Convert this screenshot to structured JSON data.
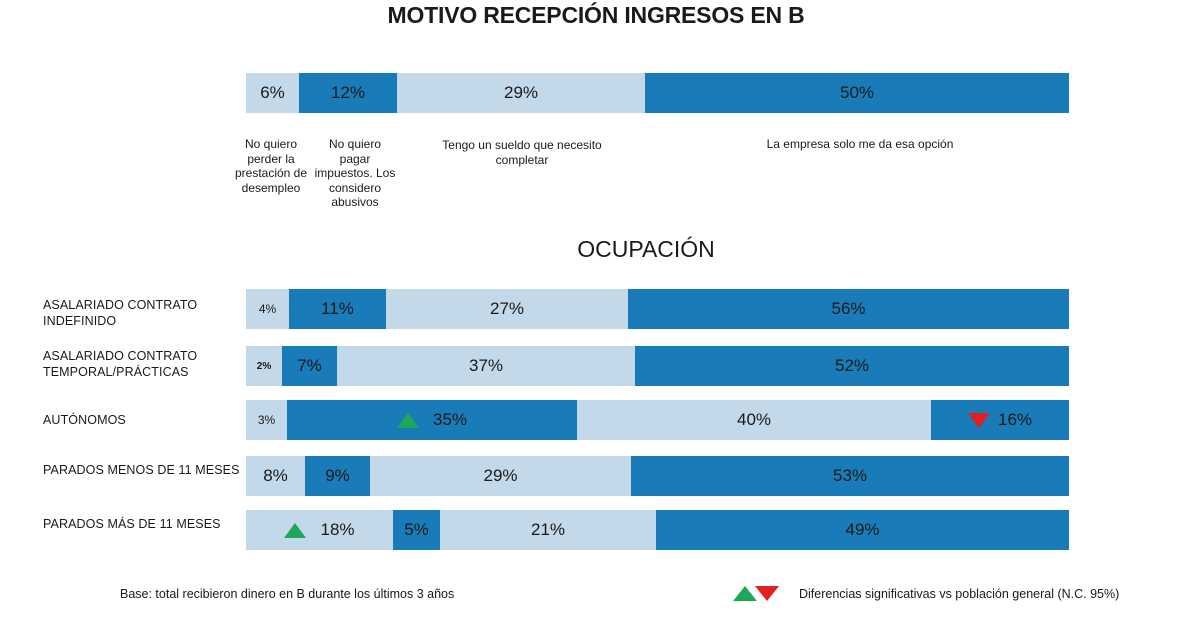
{
  "chart_data": [
    {
      "type": "bar",
      "stacked": true,
      "orientation": "horizontal",
      "title": "MOTIVO RECEPCIÓN INGRESOS EN B",
      "categories": [
        "No quiero perder la prestación de desempleo",
        "No quiero pagar impuestos. Los considero abusivos",
        "Tengo un sueldo que necesito completar",
        "La empresa solo me da esa opción"
      ],
      "values": [
        6,
        12,
        29,
        50
      ],
      "labels": [
        "6%",
        "12%",
        "29%",
        "50%"
      ],
      "colors": [
        "#c3d8e8",
        "#1a7bb9",
        "#c3d8e8",
        "#1a7bb9"
      ]
    },
    {
      "type": "bar",
      "stacked": true,
      "orientation": "horizontal",
      "title": "OCUPACIÓN",
      "rows": [
        {
          "label": "ASALARIADO CONTRATO INDEFINIDO",
          "values": [
            4,
            11,
            27,
            56
          ],
          "labels": [
            "4%",
            "11%",
            "27%",
            "56%"
          ],
          "markers": [
            "",
            "",
            "",
            ""
          ]
        },
        {
          "label": "ASALARIADO CONTRATO TEMPORAL/PRÁCTICAS",
          "values": [
            2,
            7,
            37,
            52
          ],
          "labels": [
            "2%",
            "7%",
            "37%",
            "52%"
          ],
          "markers": [
            "",
            "",
            "",
            ""
          ]
        },
        {
          "label": "AUTÓNOMOS",
          "values": [
            3,
            35,
            40,
            16
          ],
          "labels": [
            "3%",
            "35%",
            "40%",
            "16%"
          ],
          "markers": [
            "",
            "up",
            "",
            "down"
          ]
        },
        {
          "label": "PARADOS MENOS DE 11 MESES",
          "values": [
            8,
            9,
            29,
            53
          ],
          "labels": [
            "8%",
            "9%",
            "29%",
            "53%"
          ],
          "markers": [
            "",
            "",
            "",
            ""
          ]
        },
        {
          "label": "PARADOS MÁS DE 11 MESES",
          "values": [
            18,
            5,
            21,
            49
          ],
          "labels": [
            "18%",
            "5%",
            "21%",
            "49%"
          ],
          "markers": [
            "up",
            "",
            "",
            ""
          ]
        }
      ],
      "colors": [
        "#c3d8e8",
        "#1a7bb9",
        "#c3d8e8",
        "#1a7bb9"
      ]
    }
  ],
  "footer": {
    "base": "Base: total recibieron dinero en B durante los últimos 3 años",
    "legend": "Diferencias significativas vs población general (N.C. 95%)"
  }
}
